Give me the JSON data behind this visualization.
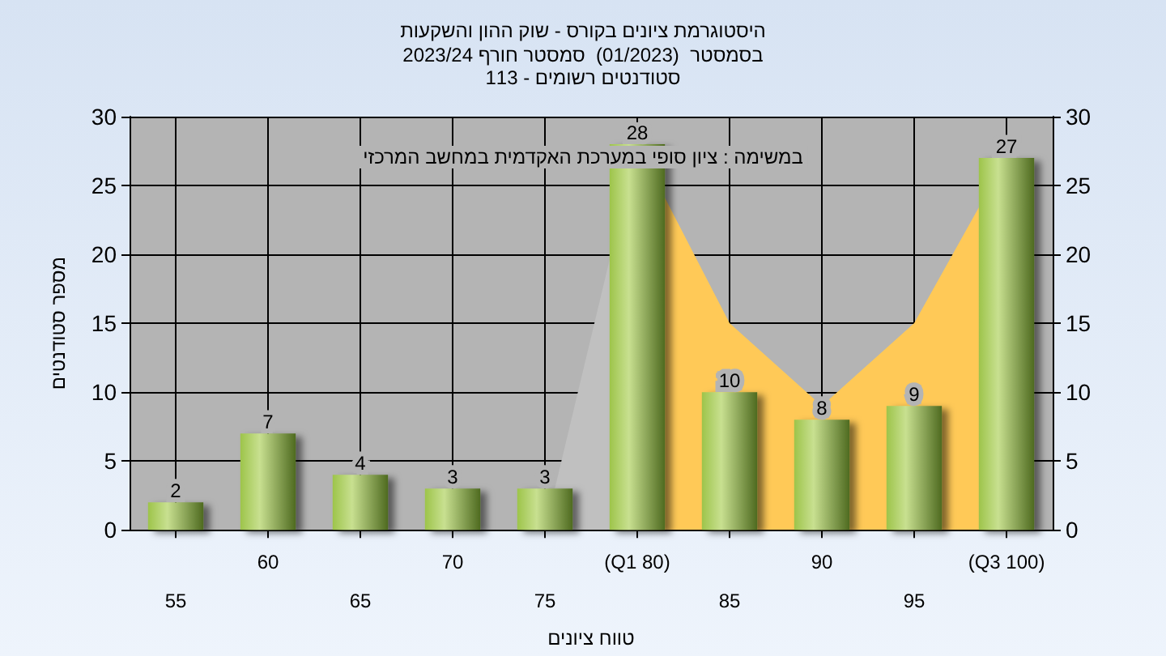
{
  "chart_data": {
    "type": "bar",
    "title": "היסטוגרמת ציונים בקורס - שוק ההון והשקעות",
    "subtitle": "בסמסטר  (01/2023)  סמסטר חורף 2023/24\nסטודנטים רשומים - 113",
    "xlabel": "טווח ציונים",
    "ylabel": "מספר סטודנטים",
    "annotations": [
      "במשימה : ציון סופי במערכת האקדמית במחשב המרכזי"
    ],
    "categories": [
      "55",
      "60",
      "65",
      "70",
      "75",
      "(Q1 80)",
      "85",
      "90",
      "95",
      "(Q3 100)"
    ],
    "series": [
      {
        "type": "area",
        "color": "#c0c0c0",
        "values": [
          null,
          null,
          null,
          null,
          0,
          28,
          null,
          null,
          null,
          null
        ]
      },
      {
        "type": "area",
        "color": "#ffc957",
        "values": [
          null,
          null,
          null,
          null,
          null,
          28,
          15,
          9,
          15,
          27
        ]
      },
      {
        "color": "#9dc44a",
        "values": [
          2,
          7,
          4,
          3,
          3,
          28,
          10,
          8,
          9,
          27
        ],
        "value_labels": [
          "2",
          "7",
          "4",
          "3",
          "3",
          "28",
          "10",
          "8",
          "9",
          "27"
        ]
      }
    ],
    "ylim": [
      0,
      30
    ],
    "yticks": [
      0,
      5,
      10,
      15,
      20,
      25,
      30
    ],
    "y2lim": [
      0,
      30
    ],
    "y2ticks": [
      0,
      5,
      10,
      15,
      20,
      25,
      30
    ],
    "grid": true
  }
}
